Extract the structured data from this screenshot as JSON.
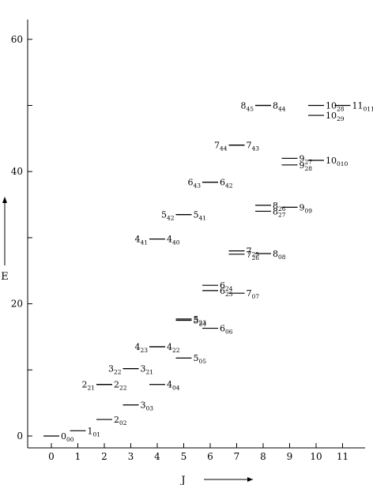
{
  "chart_data": {
    "type": "scatter",
    "title": "",
    "xlabel": "J",
    "ylabel": "E",
    "xlim": [
      -0.9,
      11.9
    ],
    "ylim": [
      -1.5,
      63
    ],
    "x_ticks": [
      0,
      1,
      2,
      3,
      4,
      5,
      6,
      7,
      8,
      9,
      10,
      11
    ],
    "x_tick_labels": [
      "0",
      "1",
      "2",
      "3",
      "4",
      "5",
      "6",
      "7",
      "8",
      "9",
      "10",
      "11"
    ],
    "y_ticks": [
      0,
      10,
      20,
      30,
      40,
      50,
      60
    ],
    "y_tick_labels": [
      "0",
      "",
      "20",
      "",
      "40",
      "",
      "60"
    ],
    "levels": [
      {
        "J": 0,
        "E": 0.0,
        "label": "0",
        "sub": "00"
      },
      {
        "J": 1,
        "E": 0.8,
        "label": "1",
        "sub": "01"
      },
      {
        "J": 2,
        "E": 2.5,
        "label": "2",
        "sub": "02"
      },
      {
        "J": 2,
        "E": 7.8,
        "label": "2",
        "sub": "21"
      },
      {
        "J": 2,
        "E": 7.8,
        "label": "2",
        "sub": "22"
      },
      {
        "J": 3,
        "E": 4.7,
        "label": "3",
        "sub": "03"
      },
      {
        "J": 3,
        "E": 10.2,
        "label": "3",
        "sub": "22"
      },
      {
        "J": 3,
        "E": 10.2,
        "label": "3",
        "sub": "21"
      },
      {
        "J": 4,
        "E": 7.8,
        "label": "4",
        "sub": "04"
      },
      {
        "J": 4,
        "E": 13.5,
        "label": "4",
        "sub": "23"
      },
      {
        "J": 4,
        "E": 13.5,
        "label": "4",
        "sub": "22"
      },
      {
        "J": 4,
        "E": 29.8,
        "label": "4",
        "sub": "41"
      },
      {
        "J": 4,
        "E": 29.8,
        "label": "4",
        "sub": "40"
      },
      {
        "J": 5,
        "E": 11.8,
        "label": "5",
        "sub": "05"
      },
      {
        "J": 5,
        "E": 17.5,
        "label": "5",
        "sub": "24"
      },
      {
        "J": 5,
        "E": 17.7,
        "label": "5",
        "sub": "23"
      },
      {
        "J": 5,
        "E": 33.5,
        "label": "5",
        "sub": "42"
      },
      {
        "J": 5,
        "E": 33.5,
        "label": "5",
        "sub": "41"
      },
      {
        "J": 6,
        "E": 16.3,
        "label": "6",
        "sub": "06"
      },
      {
        "J": 6,
        "E": 22.0,
        "label": "6",
        "sub": "25"
      },
      {
        "J": 6,
        "E": 22.8,
        "label": "6",
        "sub": "24"
      },
      {
        "J": 6,
        "E": 38.4,
        "label": "6",
        "sub": "43"
      },
      {
        "J": 6,
        "E": 38.4,
        "label": "6",
        "sub": "42"
      },
      {
        "J": 7,
        "E": 21.6,
        "label": "7",
        "sub": "07"
      },
      {
        "J": 7,
        "E": 27.5,
        "label": "7",
        "sub": "26"
      },
      {
        "J": 7,
        "E": 28.0,
        "label": "7",
        "sub": "25"
      },
      {
        "J": 7,
        "E": 44.0,
        "label": "7",
        "sub": "44"
      },
      {
        "J": 7,
        "E": 44.0,
        "label": "7",
        "sub": "43"
      },
      {
        "J": 8,
        "E": 27.6,
        "label": "8",
        "sub": "08"
      },
      {
        "J": 8,
        "E": 34.0,
        "label": "8",
        "sub": "27"
      },
      {
        "J": 8,
        "E": 34.9,
        "label": "8",
        "sub": "26"
      },
      {
        "J": 8,
        "E": 50.0,
        "label": "8",
        "sub": "45"
      },
      {
        "J": 8,
        "E": 50.0,
        "label": "8",
        "sub": "44"
      },
      {
        "J": 9,
        "E": 34.6,
        "label": "9",
        "sub": "09"
      },
      {
        "J": 9,
        "E": 41.0,
        "label": "9",
        "sub": "28"
      },
      {
        "J": 9,
        "E": 42.0,
        "label": "9",
        "sub": "27"
      },
      {
        "J": 10,
        "E": 41.7,
        "label": "10",
        "sub": "010"
      },
      {
        "J": 10,
        "E": 48.5,
        "label": "10",
        "sub": "29"
      },
      {
        "J": 10,
        "E": 50.0,
        "label": "10",
        "sub": "28"
      },
      {
        "J": 11,
        "E": 50.0,
        "label": "11",
        "sub": "011"
      }
    ]
  }
}
